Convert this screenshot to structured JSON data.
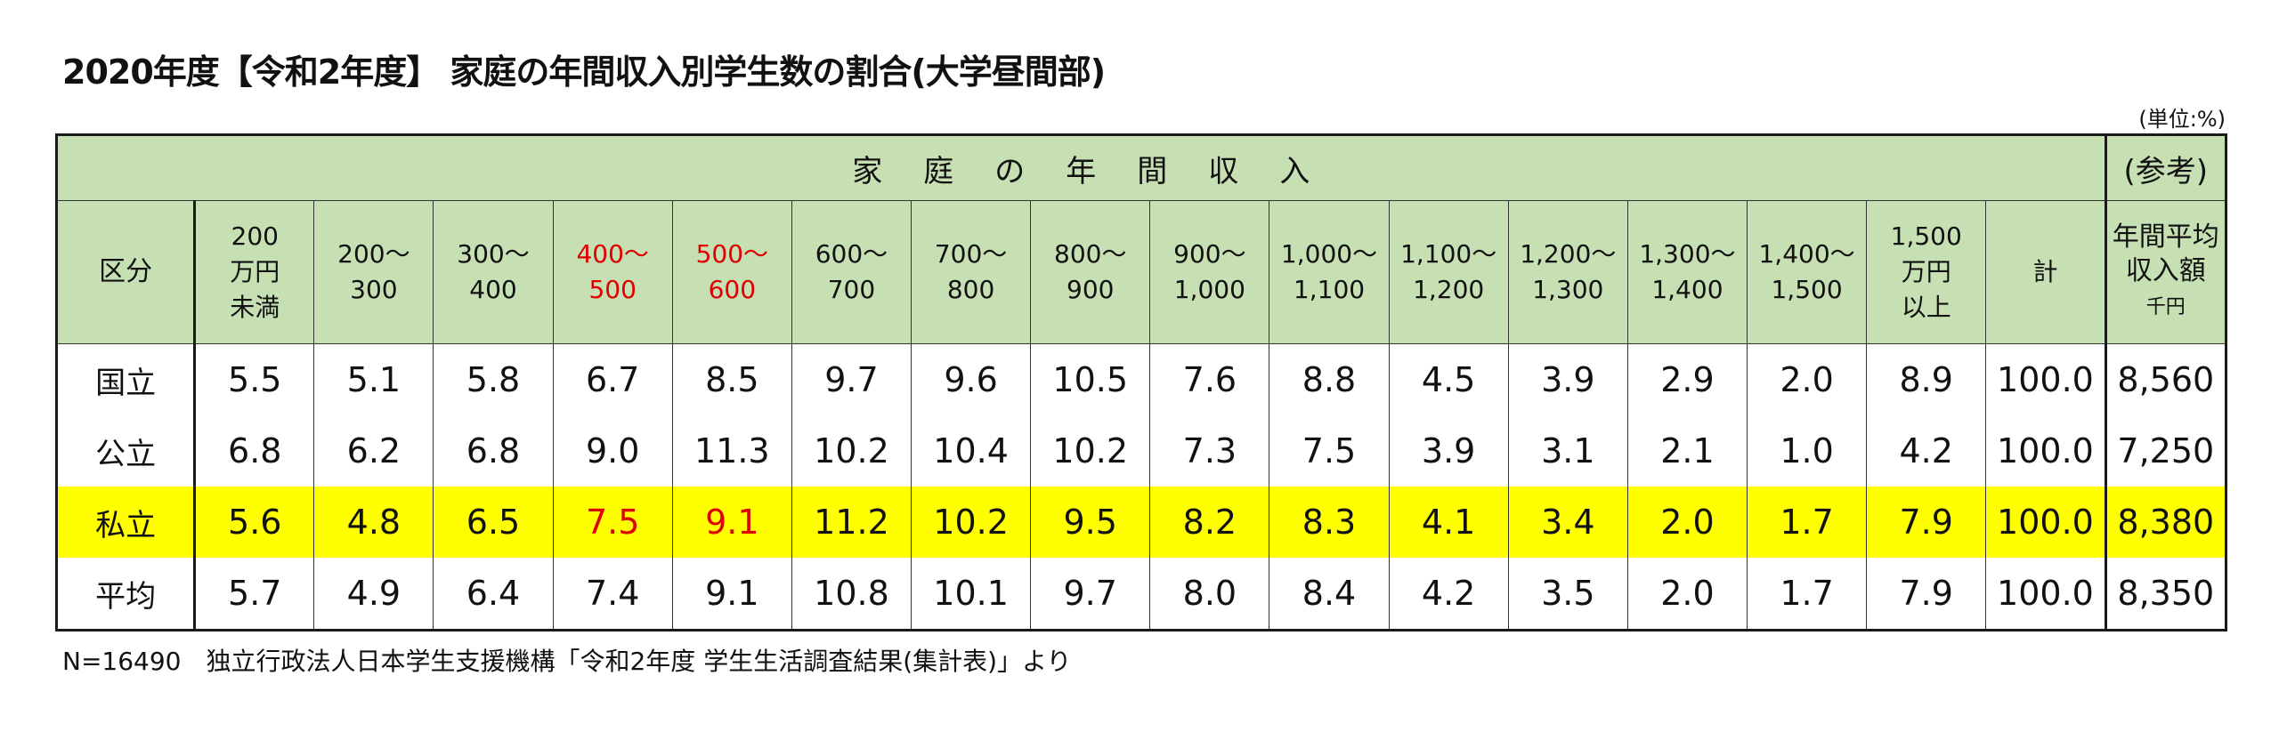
{
  "title": "2020年度【令和2年度】 家庭の年間収入別学生数の割合(大学昼間部)",
  "unit": "(単位:%)",
  "header": {
    "income_group": "家庭の年間収入",
    "reference": "(参考)",
    "category": "区分",
    "columns": [
      "200\n万円\n未満",
      "200〜300",
      "300〜400",
      "400〜500",
      "500〜600",
      "600〜700",
      "700〜800",
      "800〜900",
      "900〜1,000",
      "1,000〜\n1,100",
      "1,100〜\n1,200",
      "1,200〜\n1,300",
      "1,300〜\n1,400",
      "1,400〜\n1,500",
      "1,500\n万円\n以上"
    ],
    "total": "計",
    "avg_income": "年間平均\n収入額",
    "avg_unit": "千円"
  },
  "rows": [
    {
      "category": "国立",
      "values": [
        "5.5",
        "5.1",
        "5.8",
        "6.7",
        "8.5",
        "9.7",
        "9.6",
        "10.5",
        "7.6",
        "8.8",
        "4.5",
        "3.9",
        "2.9",
        "2.0",
        "8.9"
      ],
      "total": "100.0",
      "avg": "8,560"
    },
    {
      "category": "公立",
      "values": [
        "6.8",
        "6.2",
        "6.8",
        "9.0",
        "11.3",
        "10.2",
        "10.4",
        "10.2",
        "7.3",
        "7.5",
        "3.9",
        "3.1",
        "2.1",
        "1.0",
        "4.2"
      ],
      "total": "100.0",
      "avg": "7,250"
    },
    {
      "category": "私立",
      "values": [
        "5.6",
        "4.8",
        "6.5",
        "7.5",
        "9.1",
        "11.2",
        "10.2",
        "9.5",
        "8.2",
        "8.3",
        "4.1",
        "3.4",
        "2.0",
        "1.7",
        "7.9"
      ],
      "total": "100.0",
      "avg": "8,380"
    },
    {
      "category": "平均",
      "values": [
        "5.7",
        "4.9",
        "6.4",
        "7.4",
        "9.1",
        "10.8",
        "10.1",
        "9.7",
        "8.0",
        "8.4",
        "4.2",
        "3.5",
        "2.0",
        "1.7",
        "7.9"
      ],
      "total": "100.0",
      "avg": "8,350"
    }
  ],
  "note": "N=16490　独立行政法人日本学生支援機構「令和2年度 学生生活調査結果(集計表)」より",
  "colors": {
    "header_bg": "#c6e0b4",
    "highlight_bg": "#ffff00",
    "emphasis_red": "#e00000"
  }
}
